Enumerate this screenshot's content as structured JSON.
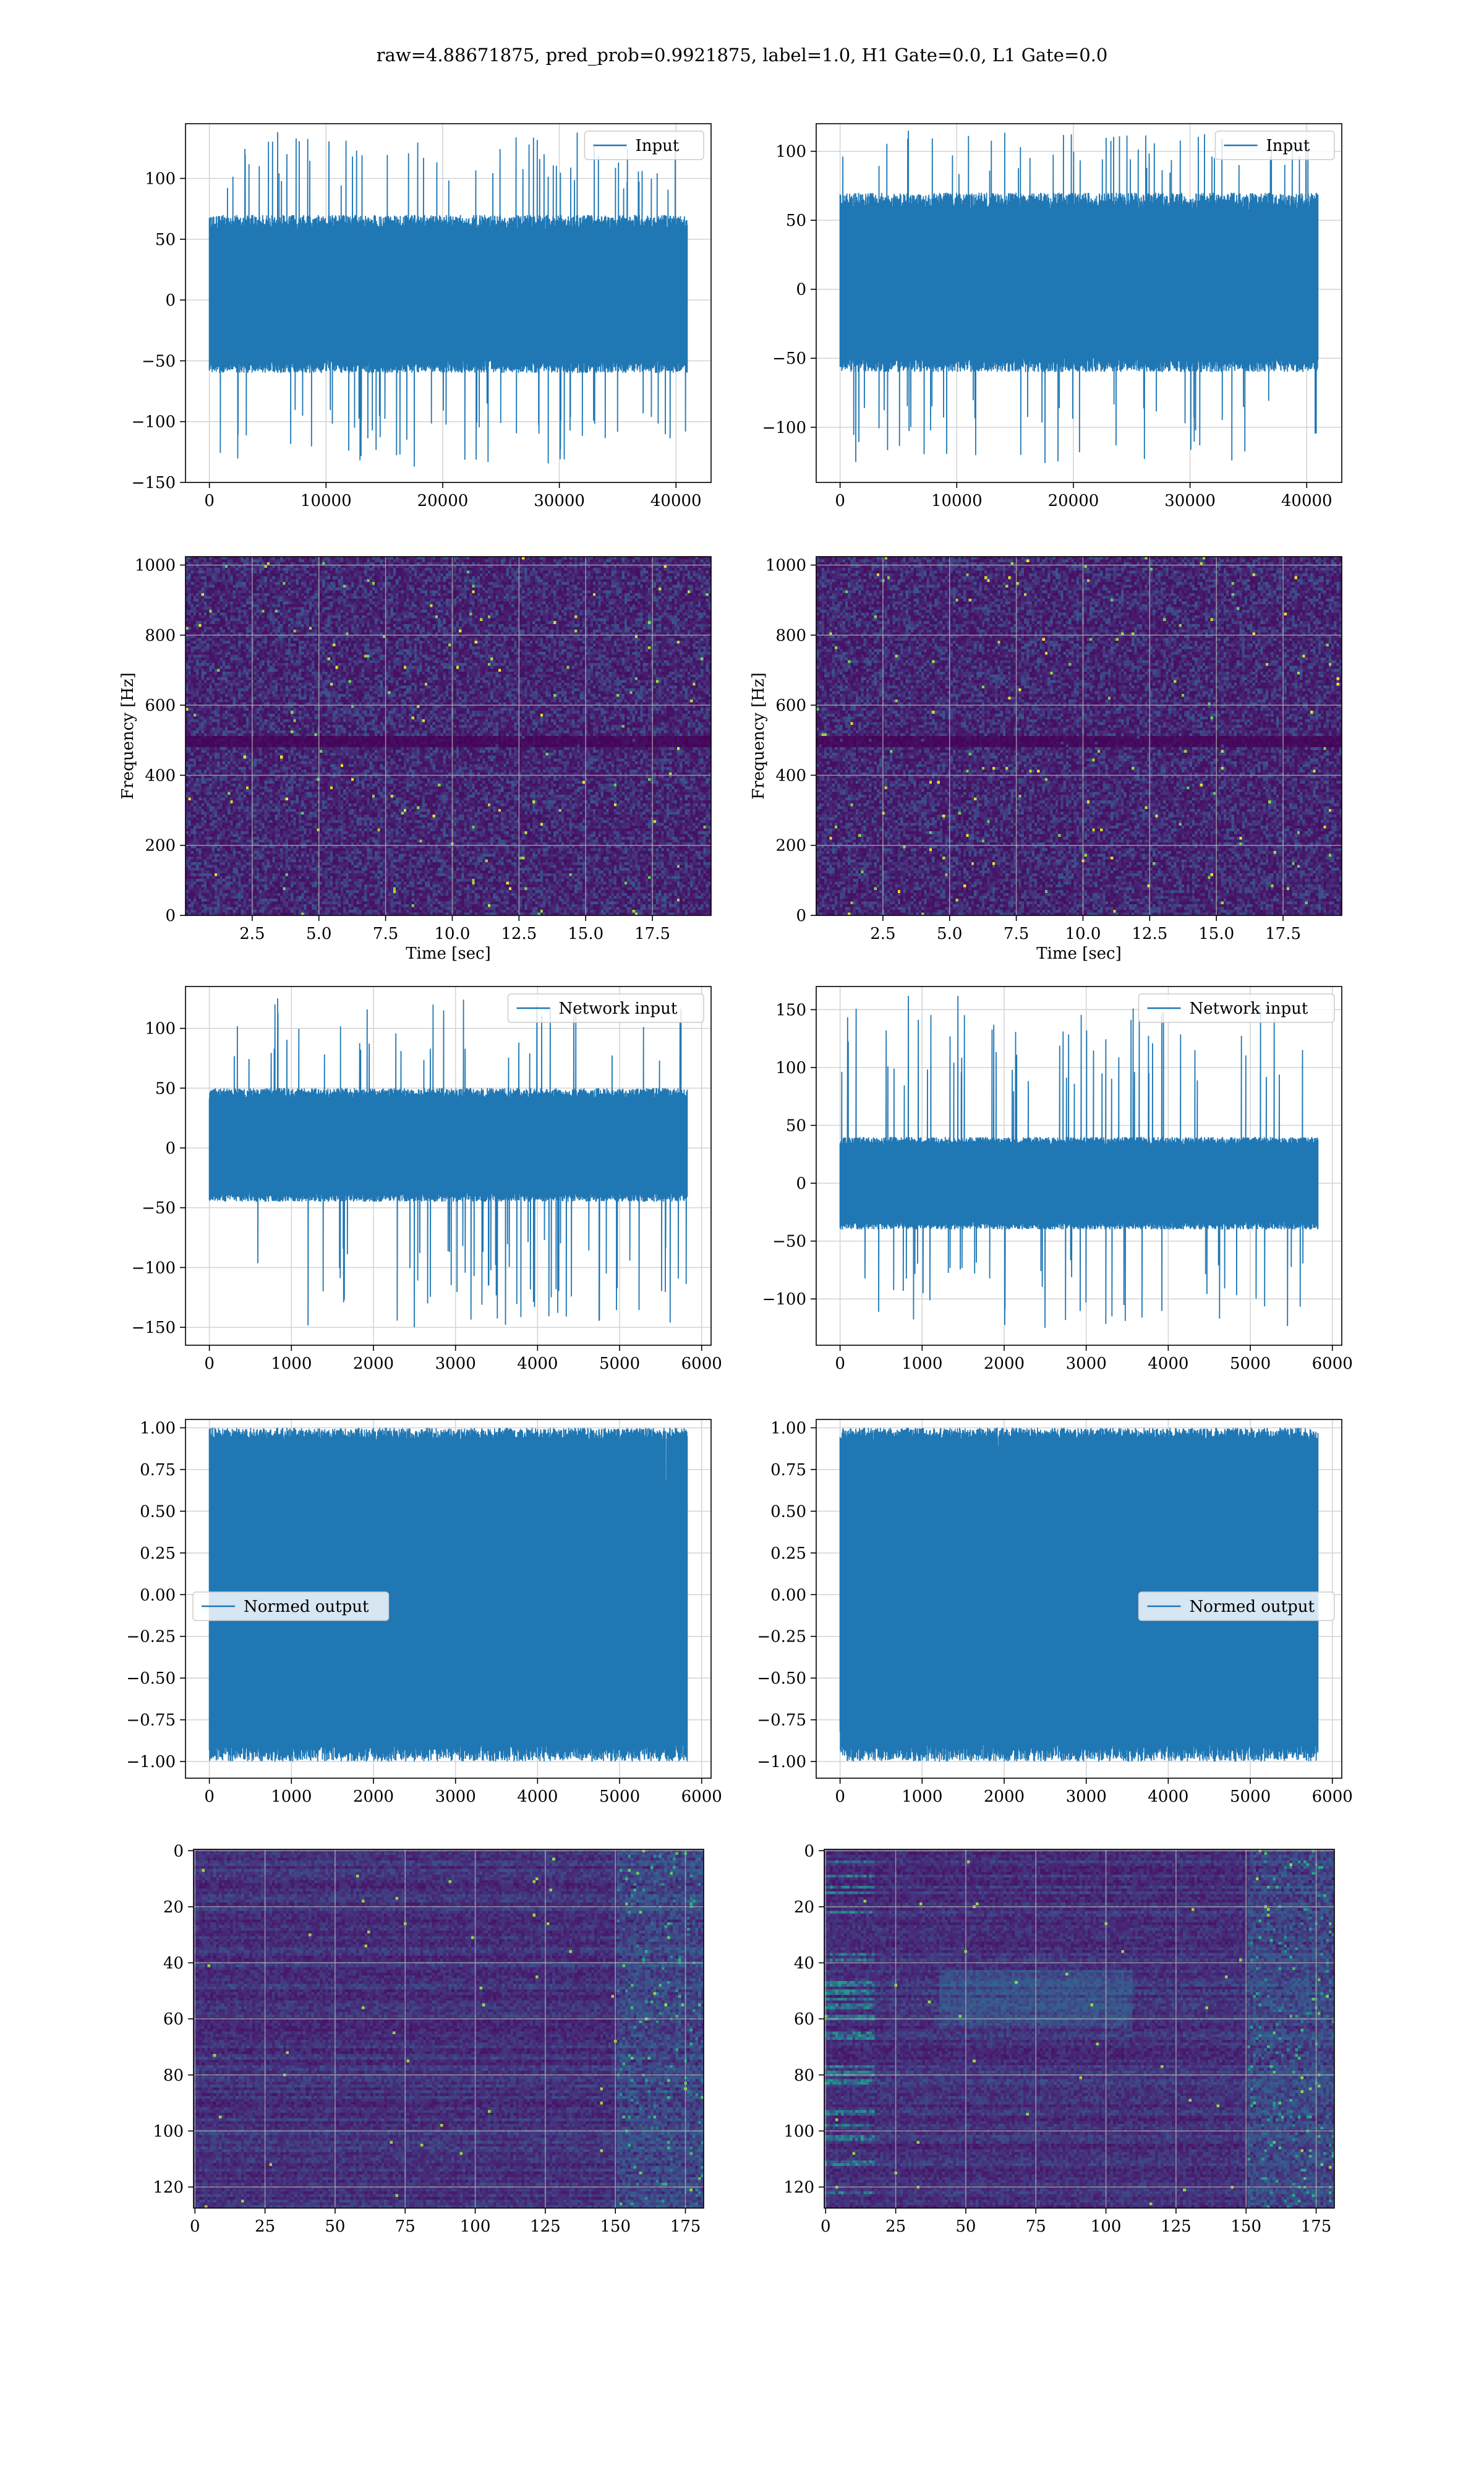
{
  "figure": {
    "title": "raw=4.88671875, pred_prob=0.9921875, label=1.0, H1 Gate=0.0, L1 Gate=0.0",
    "colors": {
      "line": "#1f77b4",
      "heat_low": "#440154",
      "heat_high": "#fde725",
      "grid": "#d3d3d3"
    }
  },
  "chart_data": [
    {
      "id": "h1-input",
      "type": "line",
      "legend_placement": "upper right",
      "grid": true,
      "series": [
        {
          "name": "Input",
          "n_points": 40960,
          "amplitude_band": [
            -60,
            70
          ],
          "peaks": [
            -137,
            138
          ]
        }
      ],
      "xlim": [
        -2048,
        43008
      ],
      "ylim": [
        -150,
        145
      ],
      "xticks": [
        0,
        10000,
        20000,
        30000,
        40000
      ],
      "yticks": [
        100,
        50,
        0,
        -50,
        -100,
        -150
      ],
      "xlabel": "",
      "ylabel": ""
    },
    {
      "id": "l1-input",
      "type": "line",
      "legend_placement": "upper right",
      "grid": true,
      "series": [
        {
          "name": "Input",
          "n_points": 40960,
          "amplitude_band": [
            -60,
            70
          ],
          "peaks": [
            -126,
            115
          ]
        }
      ],
      "xlim": [
        -2048,
        43008
      ],
      "ylim": [
        -140,
        120
      ],
      "xticks": [
        0,
        10000,
        20000,
        30000,
        40000
      ],
      "yticks": [
        100,
        50,
        0,
        -50,
        -100
      ],
      "xlabel": "",
      "ylabel": ""
    },
    {
      "id": "h1-spectrogram",
      "type": "heatmap",
      "grid": true,
      "colormap": "viridis",
      "xlim": [
        0,
        19.7
      ],
      "ylim": [
        0,
        1024
      ],
      "xticks": [
        2.5,
        5.0,
        7.5,
        10.0,
        12.5,
        15.0,
        17.5
      ],
      "yticks": [
        0,
        200,
        400,
        600,
        800,
        1000
      ],
      "xlabel": "Time [sec]",
      "ylabel": "Frequency [Hz]",
      "dark_band_hz": 500
    },
    {
      "id": "l1-spectrogram",
      "type": "heatmap",
      "grid": true,
      "colormap": "viridis",
      "xlim": [
        0,
        19.7
      ],
      "ylim": [
        0,
        1024
      ],
      "xticks": [
        2.5,
        5.0,
        7.5,
        10.0,
        12.5,
        15.0,
        17.5
      ],
      "yticks": [
        0,
        200,
        400,
        600,
        800,
        1000
      ],
      "xlabel": "Time [sec]",
      "ylabel": "Frequency [Hz]",
      "dark_band_hz": 500
    },
    {
      "id": "h1-network-input",
      "type": "line",
      "legend_placement": "upper right",
      "grid": true,
      "series": [
        {
          "name": "Network input",
          "n_points": 5824,
          "amplitude_band": [
            -45,
            50
          ],
          "peaks": [
            -150,
            125
          ]
        }
      ],
      "xlim": [
        -291,
        6115
      ],
      "ylim": [
        -165,
        135
      ],
      "xticks": [
        0,
        1000,
        2000,
        3000,
        4000,
        5000,
        6000
      ],
      "yticks": [
        100,
        50,
        0,
        -50,
        -100,
        -150
      ],
      "xlabel": "",
      "ylabel": ""
    },
    {
      "id": "l1-network-input",
      "type": "line",
      "legend_placement": "upper right",
      "grid": true,
      "series": [
        {
          "name": "Network input",
          "n_points": 5824,
          "amplitude_band": [
            -40,
            40
          ],
          "peaks": [
            -125,
            162
          ]
        }
      ],
      "xlim": [
        -291,
        6115
      ],
      "ylim": [
        -140,
        170
      ],
      "xticks": [
        0,
        1000,
        2000,
        3000,
        4000,
        5000,
        6000
      ],
      "yticks": [
        150,
        100,
        50,
        0,
        -50,
        -100
      ],
      "xlabel": "",
      "ylabel": ""
    },
    {
      "id": "h1-normed-output",
      "type": "line",
      "legend_placement": "center left",
      "grid": true,
      "series": [
        {
          "name": "Normed output",
          "n_points": 5824,
          "amplitude_band": [
            -0.9,
            0.9
          ],
          "peaks": [
            -1.0,
            1.0
          ]
        }
      ],
      "xlim": [
        -291,
        6115
      ],
      "ylim": [
        -1.1,
        1.05
      ],
      "xticks": [
        0,
        1000,
        2000,
        3000,
        4000,
        5000,
        6000
      ],
      "yticks": [
        1.0,
        0.75,
        0.5,
        0.25,
        0.0,
        -0.25,
        -0.5,
        -0.75,
        -1.0
      ],
      "xlabel": "",
      "ylabel": ""
    },
    {
      "id": "l1-normed-output",
      "type": "line",
      "legend_placement": "center right",
      "grid": true,
      "series": [
        {
          "name": "Normed output",
          "n_points": 5824,
          "amplitude_band": [
            -0.9,
            0.9
          ],
          "peaks": [
            -1.0,
            1.0
          ]
        }
      ],
      "xlim": [
        -291,
        6115
      ],
      "ylim": [
        -1.1,
        1.05
      ],
      "xticks": [
        0,
        1000,
        2000,
        3000,
        4000,
        5000,
        6000
      ],
      "yticks": [
        1.0,
        0.75,
        0.5,
        0.25,
        0.0,
        -0.25,
        -0.5,
        -0.75,
        -1.0
      ],
      "xlabel": "",
      "ylabel": ""
    },
    {
      "id": "h1-feature-map",
      "type": "heatmap",
      "grid": true,
      "colormap": "viridis",
      "xlim": [
        -0.5,
        181.5
      ],
      "ylim": [
        127.5,
        -0.5
      ],
      "xticks": [
        0,
        25,
        50,
        75,
        100,
        125,
        150,
        175
      ],
      "yticks": [
        0,
        20,
        40,
        60,
        80,
        100,
        120
      ],
      "xlabel": "",
      "ylabel": ""
    },
    {
      "id": "l1-feature-map",
      "type": "heatmap",
      "grid": true,
      "colormap": "viridis",
      "xlim": [
        -0.5,
        181.5
      ],
      "ylim": [
        127.5,
        -0.5
      ],
      "xticks": [
        0,
        25,
        50,
        75,
        100,
        125,
        150,
        175
      ],
      "yticks": [
        0,
        20,
        40,
        60,
        80,
        100,
        120
      ],
      "xlabel": "",
      "ylabel": ""
    }
  ]
}
